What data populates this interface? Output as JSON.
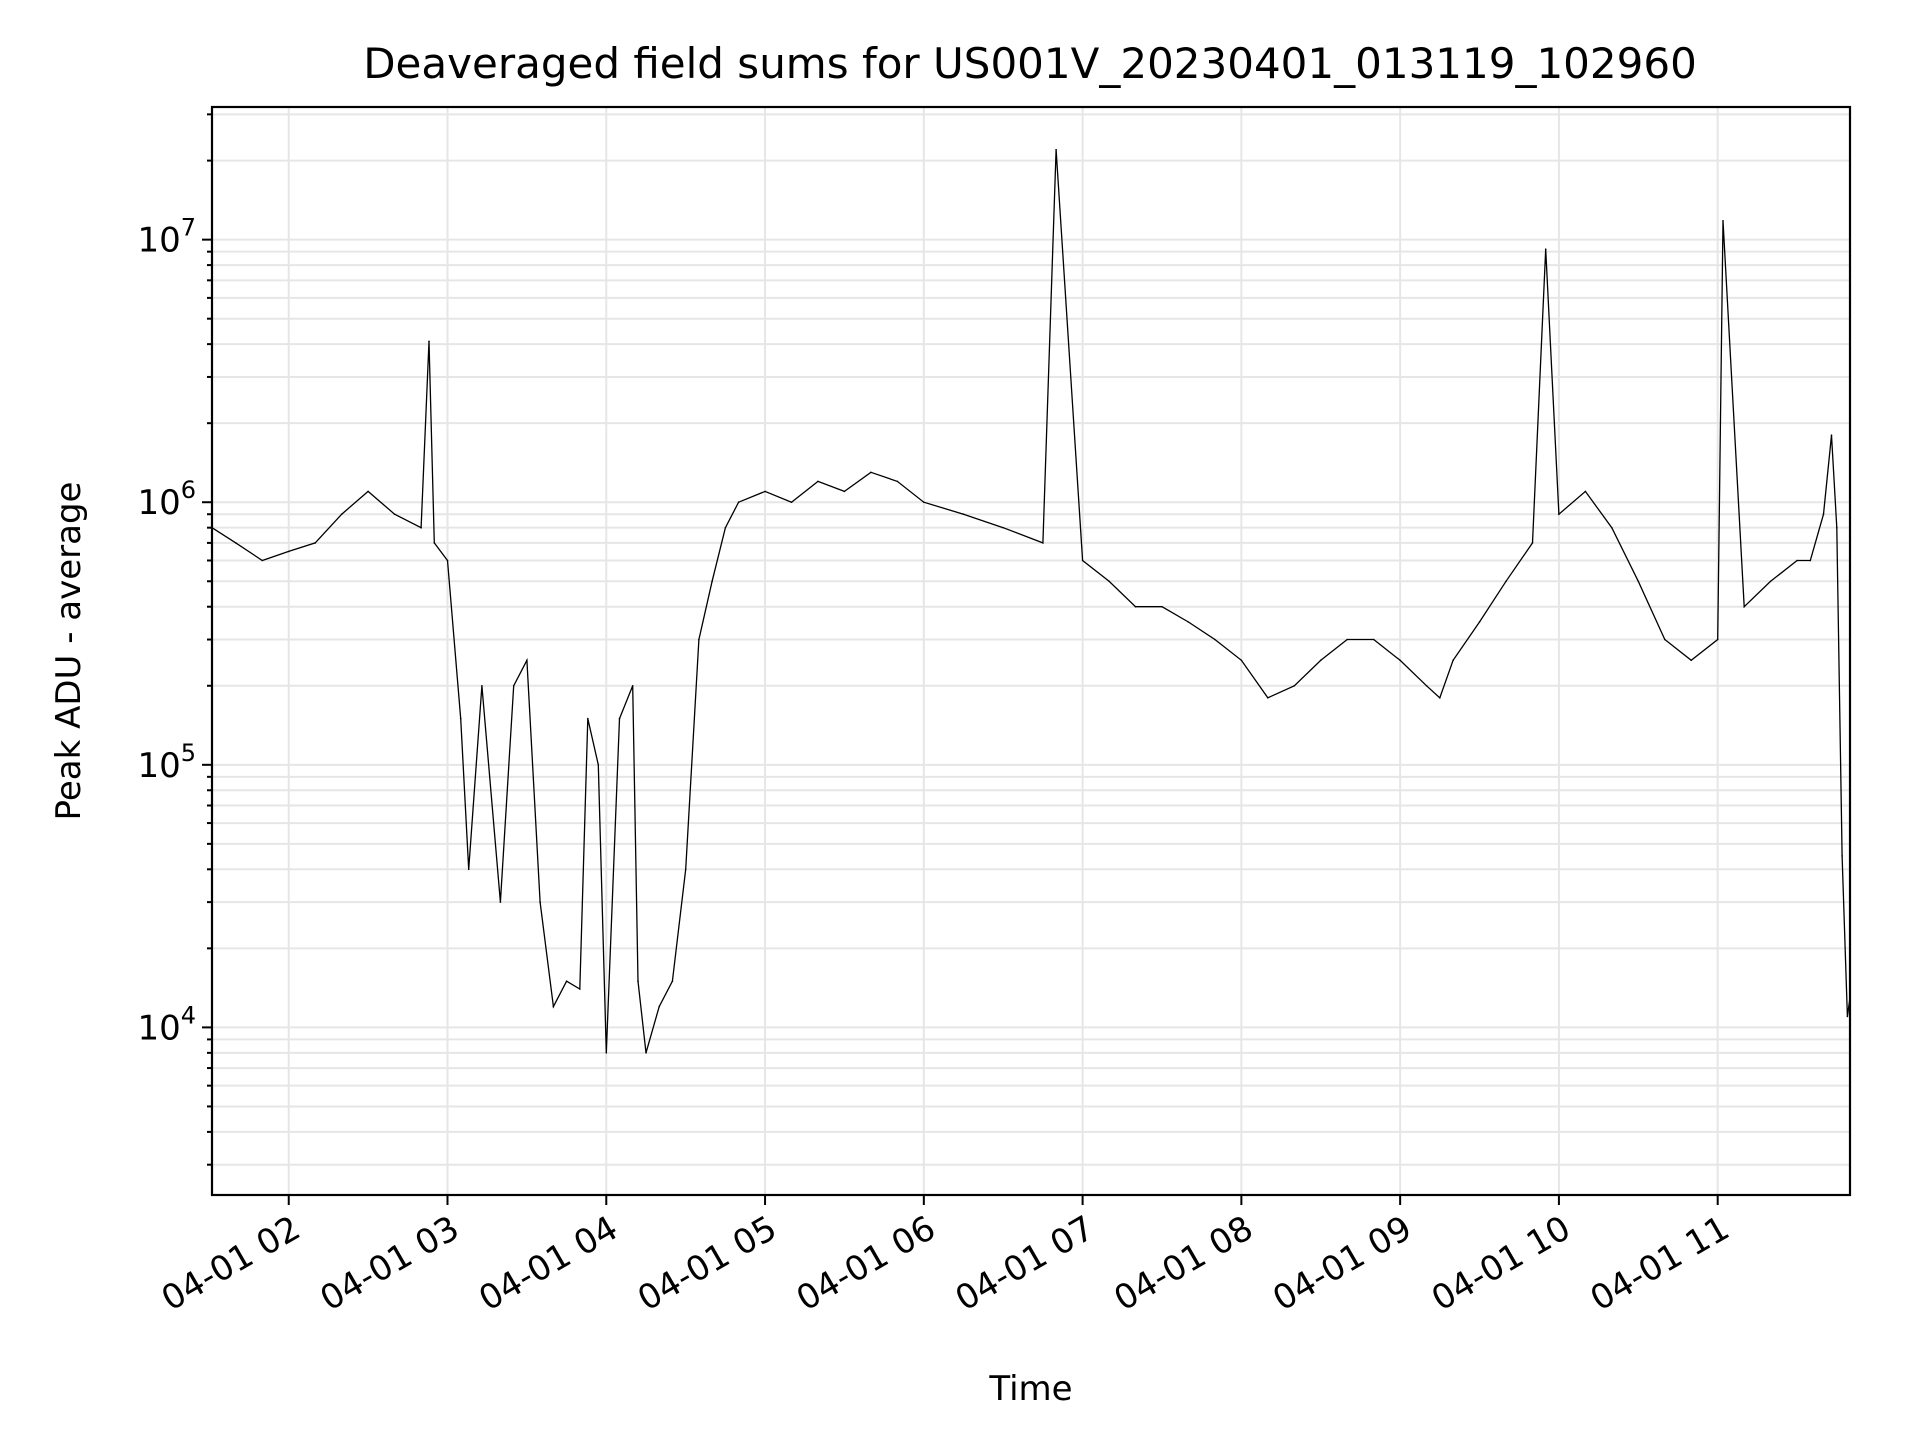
{
  "chart_data": {
    "type": "line",
    "title": "Deaveraged field sums for US001V_20230401_013119_102960",
    "xlabel": "Time",
    "ylabel": "Peak ADU - average",
    "yscale": "log",
    "ylim": [
      2300,
      32000000
    ],
    "xlim": [
      "2023-04-01 01:31:00",
      "2023-04-01 11:50:00"
    ],
    "grid": true,
    "x_ticks": [
      "04-01 02",
      "04-01 03",
      "04-01 04",
      "04-01 05",
      "04-01 06",
      "04-01 07",
      "04-01 08",
      "04-01 09",
      "04-01 10",
      "04-01 11"
    ],
    "y_ticks": [
      {
        "value": 10000,
        "base": "10",
        "exp": "4"
      },
      {
        "value": 100000,
        "base": "10",
        "exp": "5"
      },
      {
        "value": 1000000,
        "base": "10",
        "exp": "6"
      },
      {
        "value": 10000000,
        "base": "10",
        "exp": "7"
      }
    ],
    "series": [
      {
        "color": "#000000",
        "x": [
          "2023-04-01 01:31",
          "2023-04-01 01:40",
          "2023-04-01 01:50",
          "2023-04-01 02:00",
          "2023-04-01 02:10",
          "2023-04-01 02:20",
          "2023-04-01 02:30",
          "2023-04-01 02:40",
          "2023-04-01 02:50",
          "2023-04-01 02:53",
          "2023-04-01 02:55",
          "2023-04-01 03:00",
          "2023-04-01 03:05",
          "2023-04-01 03:08",
          "2023-04-01 03:13",
          "2023-04-01 03:20",
          "2023-04-01 03:25",
          "2023-04-01 03:30",
          "2023-04-01 03:35",
          "2023-04-01 03:40",
          "2023-04-01 03:45",
          "2023-04-01 03:50",
          "2023-04-01 03:53",
          "2023-04-01 03:57",
          "2023-04-01 04:00",
          "2023-04-01 04:05",
          "2023-04-01 04:10",
          "2023-04-01 04:12",
          "2023-04-01 04:15",
          "2023-04-01 04:20",
          "2023-04-01 04:25",
          "2023-04-01 04:30",
          "2023-04-01 04:35",
          "2023-04-01 04:40",
          "2023-04-01 04:45",
          "2023-04-01 04:50",
          "2023-04-01 05:00",
          "2023-04-01 05:10",
          "2023-04-01 05:20",
          "2023-04-01 05:30",
          "2023-04-01 05:40",
          "2023-04-01 05:50",
          "2023-04-01 06:00",
          "2023-04-01 06:15",
          "2023-04-01 06:30",
          "2023-04-01 06:45",
          "2023-04-01 06:50",
          "2023-04-01 07:00",
          "2023-04-01 07:10",
          "2023-04-01 07:20",
          "2023-04-01 07:30",
          "2023-04-01 07:40",
          "2023-04-01 07:50",
          "2023-04-01 08:00",
          "2023-04-01 08:10",
          "2023-04-01 08:20",
          "2023-04-01 08:30",
          "2023-04-01 08:40",
          "2023-04-01 08:50",
          "2023-04-01 09:00",
          "2023-04-01 09:10",
          "2023-04-01 09:15",
          "2023-04-01 09:20",
          "2023-04-01 09:30",
          "2023-04-01 09:40",
          "2023-04-01 09:50",
          "2023-04-01 09:55",
          "2023-04-01 10:00",
          "2023-04-01 10:10",
          "2023-04-01 10:20",
          "2023-04-01 10:30",
          "2023-04-01 10:40",
          "2023-04-01 10:50",
          "2023-04-01 11:00",
          "2023-04-01 11:02",
          "2023-04-01 11:10",
          "2023-04-01 11:20",
          "2023-04-01 11:30",
          "2023-04-01 11:35",
          "2023-04-01 11:40",
          "2023-04-01 11:43",
          "2023-04-01 11:45",
          "2023-04-01 11:47",
          "2023-04-01 11:49",
          "2023-04-01 11:50"
        ],
        "values": [
          800000,
          700000,
          600000,
          650000,
          700000,
          900000,
          1100000,
          900000,
          800000,
          4100000,
          700000,
          600000,
          150000,
          40000,
          200000,
          30000,
          200000,
          250000,
          30000,
          12000,
          15000,
          14000,
          150000,
          100000,
          8000,
          150000,
          200000,
          15000,
          8000,
          12000,
          15000,
          40000,
          300000,
          500000,
          800000,
          1000000,
          1100000,
          1000000,
          1200000,
          1100000,
          1300000,
          1200000,
          1000000,
          900000,
          800000,
          700000,
          22000000,
          600000,
          500000,
          400000,
          400000,
          350000,
          300000,
          250000,
          180000,
          200000,
          250000,
          300000,
          300000,
          250000,
          200000,
          180000,
          250000,
          350000,
          500000,
          700000,
          9200000,
          900000,
          1100000,
          800000,
          500000,
          300000,
          250000,
          300000,
          11800000,
          400000,
          500000,
          600000,
          600000,
          900000,
          1800000,
          800000,
          45000,
          11000,
          13000
        ]
      }
    ]
  }
}
